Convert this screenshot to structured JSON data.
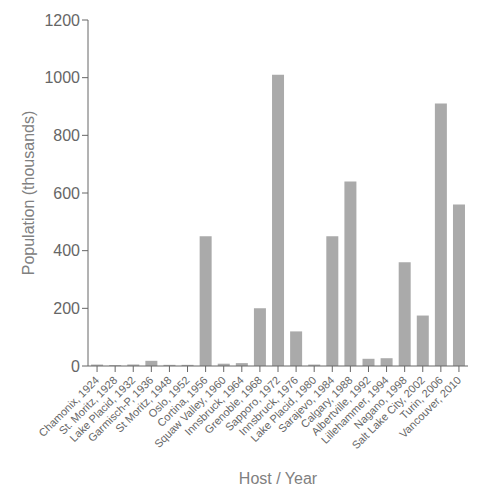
{
  "chart_data": {
    "type": "bar",
    "categories": [
      "Chamonix, 1924",
      "St. Moritz, 1928",
      "Lake Placid, 1932",
      "Garmisch-P, 1936",
      "St Moritz, 1948",
      "Oslo, 1952",
      "Cortina, 1956",
      "Squaw Valley, 1960",
      "Innsbruck, 1964",
      "Grenoble, 1968",
      "Sapporo, 1972",
      "Innsbruck, 1976",
      "Lake Placid, 1980",
      "Sarajevo, 1984",
      "Calgary, 1988",
      "Albertville, 1992",
      "Lillehammer, 1994",
      "Nagano, 1998",
      "Salt Lake City, 2002",
      "Turin, 2006",
      "Vancouver, 2010"
    ],
    "values": [
      5,
      3,
      5,
      18,
      4,
      4,
      450,
      8,
      10,
      200,
      1010,
      120,
      5,
      450,
      640,
      25,
      27,
      360,
      175,
      910,
      560
    ],
    "color": "#aaaaaa",
    "xlabel": "Host / Year",
    "ylabel": "Population (thousands)",
    "ylim": [
      0,
      1200
    ],
    "yticks": [
      0,
      200,
      400,
      600,
      800,
      1000,
      1200
    ],
    "grid": false
  }
}
